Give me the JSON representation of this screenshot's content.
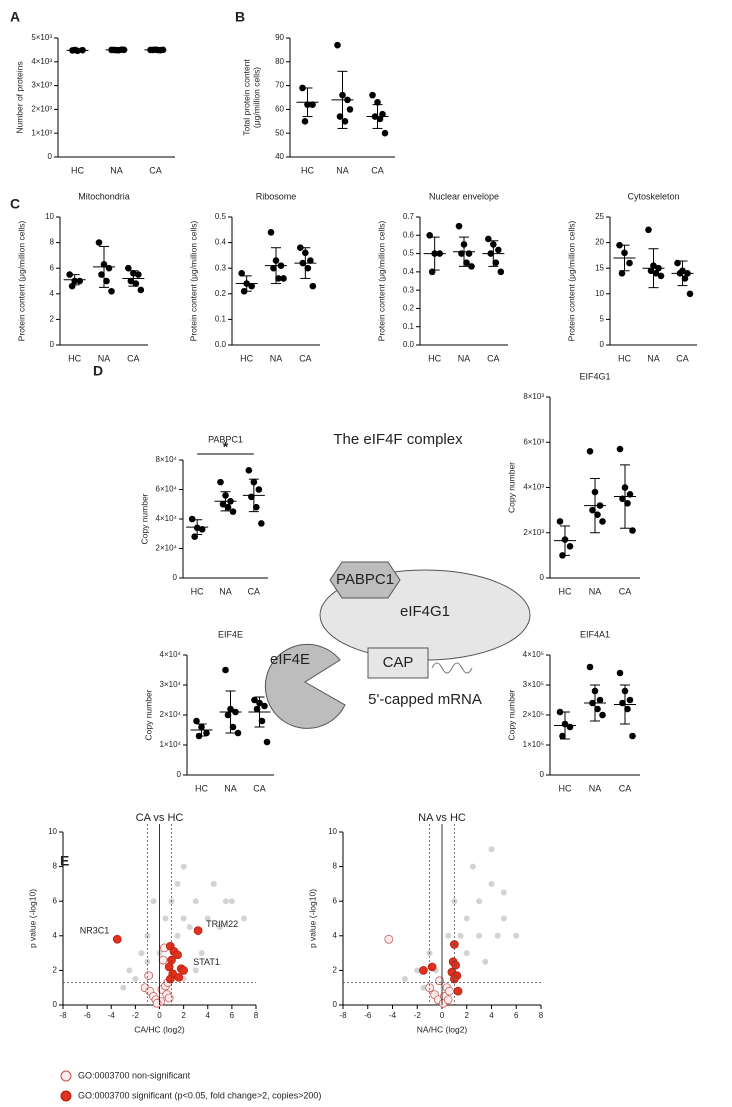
{
  "chart_data": [
    {
      "type": "dotplot",
      "panel": "A",
      "ylabel": [
        "Number of proteins"
      ],
      "categories": [
        "HC",
        "NA",
        "CA"
      ],
      "values": [
        [
          4480,
          4460,
          4490,
          4500
        ],
        [
          4500,
          4490,
          4510,
          4500,
          4490,
          4505
        ],
        [
          4500,
          4510,
          4490,
          4500,
          4495,
          4505
        ]
      ],
      "means": [
        4482,
        4499,
        4500
      ],
      "sd": [
        17,
        8,
        7
      ],
      "ylim": [
        0,
        5000
      ],
      "yticks": [
        0,
        {
          "value": 1000,
          "label": "1×10³"
        },
        {
          "value": 2000,
          "label": "2×10³"
        },
        {
          "value": 3000,
          "label": "3×10³"
        },
        {
          "value": 4000,
          "label": "4×10³"
        },
        {
          "value": 5000,
          "label": "5×10³"
        }
      ]
    },
    {
      "type": "dotplot",
      "panel": "B",
      "ylabel": [
        "Total protein content",
        "(μg/million cells)"
      ],
      "categories": [
        "HC",
        "NA",
        "CA"
      ],
      "values": [
        [
          69,
          62,
          62,
          55
        ],
        [
          87,
          66,
          64,
          57,
          55,
          60
        ],
        [
          66,
          63,
          58,
          57,
          56,
          50
        ]
      ],
      "means": [
        63,
        64,
        57
      ],
      "sd": [
        6,
        12,
        5
      ],
      "ylim": [
        40,
        90
      ],
      "yticks": [
        40,
        50,
        60,
        70,
        80,
        90
      ]
    },
    {
      "type": "dotplot",
      "panel": "C",
      "title": "Mitochondria",
      "ylabel": [
        "Protein content (μg/million cells)"
      ],
      "categories": [
        "HC",
        "NA",
        "CA"
      ],
      "values": [
        [
          5.5,
          5,
          5,
          4.6
        ],
        [
          8,
          6.3,
          6,
          5.5,
          5,
          4.2
        ],
        [
          6,
          5.6,
          5.5,
          5,
          4.8,
          4.3
        ]
      ],
      "means": [
        5.1,
        6.1,
        5.2
      ],
      "sd": [
        0.4,
        1.6,
        0.6
      ],
      "ylim": [
        0,
        10
      ],
      "yticks": [
        0,
        2,
        4,
        6,
        8,
        10
      ]
    },
    {
      "type": "dotplot",
      "title": "Ribosome",
      "ylabel": [
        "Protein content (μg/million cells)"
      ],
      "categories": [
        "HC",
        "NA",
        "CA"
      ],
      "values": [
        [
          0.28,
          0.24,
          0.23,
          0.21
        ],
        [
          0.44,
          0.33,
          0.31,
          0.3,
          0.26,
          0.26
        ],
        [
          0.38,
          0.36,
          0.33,
          0.32,
          0.3,
          0.23
        ]
      ],
      "means": [
        0.24,
        0.31,
        0.32
      ],
      "sd": [
        0.03,
        0.07,
        0.06
      ],
      "ylim": [
        0,
        0.5
      ],
      "yticks": [
        {
          "value": 0,
          "label": "0.0"
        },
        0.1,
        0.2,
        0.3,
        0.4,
        0.5
      ]
    },
    {
      "type": "dotplot",
      "title": "Nuclear envelope",
      "ylabel": [
        "Protein content (μg/million cells)"
      ],
      "categories": [
        "HC",
        "NA",
        "CA"
      ],
      "values": [
        [
          0.6,
          0.5,
          0.5,
          0.4
        ],
        [
          0.65,
          0.55,
          0.5,
          0.5,
          0.45,
          0.43
        ],
        [
          0.58,
          0.55,
          0.52,
          0.5,
          0.45,
          0.4
        ]
      ],
      "means": [
        0.5,
        0.51,
        0.5
      ],
      "sd": [
        0.09,
        0.08,
        0.07
      ],
      "ylim": [
        0,
        0.7
      ],
      "yticks": [
        {
          "value": 0,
          "label": "0.0"
        },
        0.1,
        0.2,
        0.3,
        0.4,
        0.5,
        0.6,
        0.7
      ]
    },
    {
      "type": "dotplot",
      "title": "Cytoskeleton",
      "ylabel": [
        "Protein content (μg/million cells)"
      ],
      "categories": [
        "HC",
        "NA",
        "CA"
      ],
      "values": [
        [
          19.5,
          18,
          16,
          14
        ],
        [
          22.5,
          15.5,
          15,
          14.5,
          14,
          13.5
        ],
        [
          16,
          14.5,
          14,
          14,
          13,
          10
        ]
      ],
      "means": [
        17,
        15,
        14
      ],
      "sd": [
        2.5,
        3.8,
        2.4
      ],
      "ylim": [
        0,
        25
      ],
      "yticks": [
        0,
        5,
        10,
        15,
        20,
        25
      ]
    },
    {
      "type": "dotplot",
      "panel": "D",
      "title": "PABPC1",
      "ylabel": [
        "Copy number"
      ],
      "categories": [
        "HC",
        "NA",
        "CA"
      ],
      "annotation": "*",
      "values": [
        [
          40000,
          34000,
          33000,
          28000
        ],
        [
          65000,
          56000,
          52000,
          50000,
          48000,
          45000
        ],
        [
          73000,
          65000,
          60000,
          55000,
          48000,
          37000
        ]
      ],
      "means": [
        34500,
        52000,
        56000
      ],
      "sd": [
        5000,
        6500,
        11000
      ],
      "ylim": [
        0,
        80000
      ],
      "yticks": [
        0,
        {
          "value": 20000,
          "label": "2×10⁴"
        },
        {
          "value": 40000,
          "label": "4×10⁴"
        },
        {
          "value": 60000,
          "label": "6×10⁴"
        },
        {
          "value": 80000,
          "label": "8×10⁴"
        }
      ]
    },
    {
      "type": "dotplot",
      "title": "EIF4G1",
      "ylabel": [
        "Copy number"
      ],
      "categories": [
        "HC",
        "NA",
        "CA"
      ],
      "values": [
        [
          2500,
          1700,
          1400,
          1000
        ],
        [
          5600,
          3800,
          3200,
          3000,
          2800,
          2500
        ],
        [
          5700,
          4000,
          3700,
          3500,
          3300,
          2100
        ]
      ],
      "means": [
        1650,
        3200,
        3600
      ],
      "sd": [
        650,
        1200,
        1400
      ],
      "ylim": [
        0,
        8000
      ],
      "yticks": [
        0,
        {
          "value": 2000,
          "label": "2×10³"
        },
        {
          "value": 4000,
          "label": "4×10³"
        },
        {
          "value": 6000,
          "label": "6×10³"
        },
        {
          "value": 8000,
          "label": "8×10³"
        }
      ]
    },
    {
      "type": "dotplot",
      "title": "EIF4E",
      "ylabel": [
        "Copy number"
      ],
      "categories": [
        "HC",
        "NA",
        "CA"
      ],
      "values": [
        [
          18000,
          16000,
          14000,
          13000
        ],
        [
          35000,
          22000,
          21000,
          20000,
          16000,
          14000
        ],
        [
          25000,
          24000,
          23000,
          22000,
          18000,
          11000
        ]
      ],
      "means": [
        15000,
        21000,
        21000
      ],
      "sd": [
        2000,
        7000,
        5000
      ],
      "ylim": [
        0,
        40000
      ],
      "yticks": [
        0,
        {
          "value": 10000,
          "label": "1×10⁴"
        },
        {
          "value": 20000,
          "label": "2×10⁴"
        },
        {
          "value": 30000,
          "label": "3×10⁴"
        },
        {
          "value": 40000,
          "label": "4×10⁴"
        }
      ]
    },
    {
      "type": "dotplot",
      "title": "EIF4A1",
      "ylabel": [
        "Copy number"
      ],
      "categories": [
        "HC",
        "NA",
        "CA"
      ],
      "values": [
        [
          210000,
          170000,
          160000,
          130000
        ],
        [
          360000,
          280000,
          250000,
          240000,
          220000,
          200000
        ],
        [
          340000,
          280000,
          250000,
          240000,
          220000,
          130000
        ]
      ],
      "means": [
        165000,
        240000,
        235000
      ],
      "sd": [
        45000,
        60000,
        65000
      ],
      "ylim": [
        0,
        400000
      ],
      "yticks": [
        0,
        {
          "value": 100000,
          "label": "1×10⁵"
        },
        {
          "value": 200000,
          "label": "2×10⁵"
        },
        {
          "value": 300000,
          "label": "3×10⁵"
        },
        {
          "value": 400000,
          "label": "4×10⁵"
        }
      ]
    },
    {
      "type": "scatter",
      "panel": "E",
      "title": "CA vs HC",
      "xlabel": "CA/HC (log2)",
      "ylabel": [
        "p value (-log10)"
      ],
      "xlim": [
        -8,
        8
      ],
      "xticks": [
        -8,
        -6,
        -4,
        -2,
        0,
        2,
        4,
        6,
        8
      ],
      "ylim": [
        0,
        10
      ],
      "yticks": [
        0,
        2,
        4,
        6,
        8,
        10
      ],
      "thresholds": {
        "x": [
          -1,
          1
        ],
        "y": 1.3
      },
      "series": [
        {
          "color": "#d3d3d3",
          "x": [
            -2,
            -1.5,
            -1,
            -2.5,
            -3,
            1.5,
            2,
            2.5,
            3,
            4,
            5,
            5.5,
            6,
            3.5,
            2,
            1,
            0.5,
            1.5,
            7,
            4.5,
            -1,
            0,
            3,
            -0.5,
            2
          ],
          "values": [
            1.5,
            3,
            2.5,
            2,
            1,
            4,
            5,
            4.5,
            6,
            5,
            4.5,
            6,
            6,
            3,
            1.5,
            6,
            5,
            7,
            5,
            7,
            4,
            3,
            2,
            6,
            8
          ]
        },
        {
          "name": "GO:0003700 non-significant",
          "color": "#fbeaea",
          "x": [
            -1.2,
            -0.8,
            -0.5,
            -0.3,
            0.2,
            0.5,
            0.6,
            0.1,
            -0.9,
            0.7,
            0.4,
            0.3,
            -0.2,
            0.8
          ],
          "values": [
            1,
            0.8,
            0.5,
            0.3,
            0.9,
            1.1,
            0.6,
            0.2,
            1.7,
            1.3,
            3.3,
            2.6,
            0.1,
            0.4
          ]
        },
        {
          "name": "GO:0003700 significant (p<0.05, fold change>2, copies>200)",
          "color": "#e0301e",
          "x": [
            -3.5,
            3.2,
            0.9,
            1.2,
            1.5,
            1,
            0.8,
            1.8,
            2,
            1.1,
            1.6,
            0.9
          ],
          "values": [
            3.8,
            4.3,
            3.4,
            3.1,
            2.9,
            2.6,
            2.2,
            2.1,
            2,
            1.8,
            1.6,
            1.5
          ]
        }
      ],
      "annotations": [
        {
          "text": "NR3C1",
          "x": -3.5,
          "y": 3.8
        },
        {
          "text": "TRIM22",
          "x": 3.2,
          "y": 4.3
        },
        {
          "text": "STAT1",
          "x": 1.8,
          "y": 2.1
        }
      ]
    },
    {
      "type": "scatter",
      "title": "NA vs HC",
      "xlabel": "NA/HC (log2)",
      "ylabel": [
        "p value (-log10)"
      ],
      "xlim": [
        -8,
        8
      ],
      "xticks": [
        -8,
        -6,
        -4,
        -2,
        0,
        2,
        4,
        6,
        8
      ],
      "ylim": [
        0,
        10
      ],
      "yticks": [
        0,
        2,
        4,
        6,
        8,
        10
      ],
      "thresholds": {
        "x": [
          -1,
          1
        ],
        "y": 1.3
      },
      "series": [
        {
          "color": "#d3d3d3",
          "x": [
            -2,
            -1,
            -3,
            1.5,
            2,
            3,
            4,
            5,
            3,
            6,
            2.5,
            1,
            4,
            3.5,
            5,
            -1.5,
            0.5,
            2,
            4.5,
            -0.5
          ],
          "values": [
            2,
            3,
            1.5,
            4,
            5,
            6,
            7,
            5,
            4,
            4,
            8,
            6,
            9,
            2.5,
            6.5,
            1,
            4,
            3,
            4,
            2
          ]
        },
        {
          "color": "#fbeaea",
          "x": [
            -4.3,
            -1,
            -0.6,
            -0.3,
            0.2,
            0.4,
            0.6,
            -0.2,
            0.1,
            0.5
          ],
          "values": [
            3.8,
            1,
            0.6,
            0.3,
            0.5,
            1,
            0.8,
            1.4,
            0.1,
            0.3
          ]
        },
        {
          "color": "#e0301e",
          "x": [
            -1.5,
            -0.8,
            1,
            0.9,
            1.1,
            0.8,
            1.2,
            1.3,
            1
          ],
          "values": [
            2,
            2.2,
            3.5,
            2.5,
            2.3,
            1.9,
            1.7,
            0.8,
            1.5
          ]
        }
      ]
    }
  ],
  "diagram": {
    "title": "The eIF4F complex",
    "labels": [
      "PABPC1",
      "eIF4G1",
      "eIF4E",
      "CAP",
      "5'-capped mRNA"
    ]
  }
}
